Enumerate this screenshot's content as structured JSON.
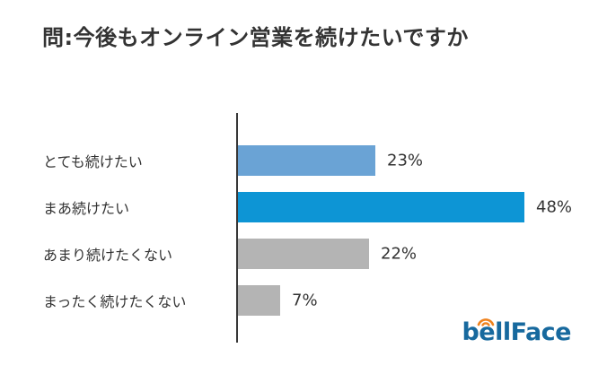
{
  "title": "問:今後もオンライン営業を続けたいですか",
  "chart_data": {
    "type": "bar",
    "orientation": "horizontal",
    "title": "問:今後もオンライン営業を続けたいですか",
    "categories": [
      "とても続けたい",
      "まあ続けたい",
      "あまり続けたくない",
      "まったく続けたくない"
    ],
    "values": [
      23,
      48,
      22,
      7
    ],
    "value_labels": [
      "23%",
      "48%",
      "22%",
      "7%"
    ],
    "unit": "%",
    "xlim": [
      0,
      50
    ],
    "grid": false,
    "legend": false,
    "value_label_position": "end-of-bar",
    "bar_colors": [
      "#6aa3d5",
      "#0d95d5",
      "#b4b4b4",
      "#b4b4b4"
    ],
    "axis_color": "#383838",
    "text_color": "#333333"
  },
  "logo": {
    "text": "bellFace",
    "text_color": "#17699e",
    "wave_color": "#f0831e",
    "icon": "signal-waves-icon"
  }
}
